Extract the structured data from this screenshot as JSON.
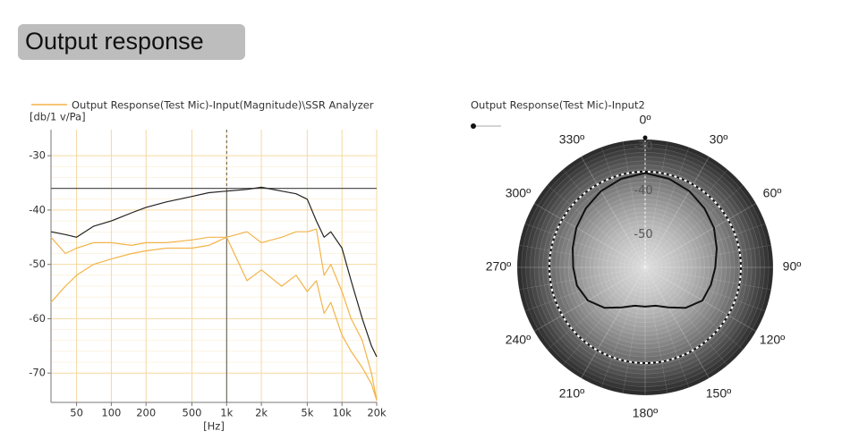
{
  "header": {
    "title": "Output response"
  },
  "chart_data": [
    {
      "type": "line",
      "ylabel": "[db/1 v/Pa]",
      "xlabel": "[Hz]",
      "x": [
        30,
        40,
        50,
        70,
        100,
        150,
        200,
        300,
        500,
        700,
        1000,
        1500,
        2000,
        3000,
        4000,
        5000,
        6000,
        7000,
        8000,
        10000,
        12000,
        15000,
        18000,
        20000
      ],
      "series": [
        {
          "color": "#222222",
          "values": [
            -44,
            -44.5,
            -45,
            -43,
            -42,
            -40.5,
            -39.5,
            -38.5,
            -37.5,
            -36.8,
            -36.5,
            -36.2,
            -35.8,
            -36.5,
            -37,
            -38,
            -42,
            -45,
            -44,
            -47,
            -53,
            -60,
            -65,
            -67
          ]
        },
        {
          "name": "Output Response(Test Mic)-Input(Magnitude)\\SSR Analyzer",
          "color": "#f2b44a",
          "values": [
            -45,
            -48,
            -47,
            -46,
            -46,
            -46.5,
            -46,
            -46,
            -45.5,
            -45,
            -45,
            -44,
            -46,
            -45,
            -44,
            -44,
            -43.5,
            -52,
            -50,
            -55,
            -60,
            -64,
            -70,
            -75
          ]
        },
        {
          "color": "#f2b44a",
          "values": [
            -57,
            -54,
            -52,
            -50,
            -49,
            -48,
            -47.5,
            -47,
            -47,
            -46.5,
            -45,
            -53,
            -51,
            -54,
            -52,
            -55,
            -53,
            -59,
            -57,
            -63,
            -66,
            -69,
            -72,
            -75
          ]
        }
      ],
      "xscale": "log",
      "xlim": [
        30,
        20000
      ],
      "xticks": [
        50,
        100,
        200,
        500,
        {
          "value": 1000,
          "label": "1k"
        },
        {
          "value": 2000,
          "label": "2k"
        },
        {
          "value": 5000,
          "label": "5k"
        },
        {
          "value": 10000,
          "label": "10k"
        },
        {
          "value": 20000,
          "label": "20k"
        }
      ],
      "ylim": [
        -75.4,
        -25.2
      ],
      "yticks": [
        -30,
        -40,
        -50,
        -60,
        -70
      ],
      "grid": true,
      "grid_color": "#f6d9a0",
      "cursor": {
        "x": 1000,
        "y": -36
      }
    },
    {
      "type": "polar",
      "title": "Output Response(Test Mic)-Input2",
      "theta": [
        0,
        15,
        30,
        45,
        60,
        75,
        90,
        105,
        120,
        135,
        150,
        165,
        180,
        195,
        210,
        225,
        240,
        255,
        270,
        285,
        300,
        315,
        330,
        345
      ],
      "series": [
        {
          "color": "#111111",
          "values": [
            -37.6,
            -38.2,
            -39,
            -40,
            -41,
            -42.2,
            -43.1,
            -43.6,
            -44,
            -46,
            -48.5,
            -50,
            -50.1,
            -50,
            -48.5,
            -46,
            -44,
            -43,
            -42.7,
            -42,
            -41,
            -40,
            -39,
            -38.2
          ]
        }
      ],
      "rlim": [
        -59,
        -30
      ],
      "rticks": [
        -30,
        -40,
        -50
      ],
      "reference_r": -37.3,
      "angle_ticks": [
        {
          "value": 0,
          "label": "0º"
        },
        {
          "value": 30,
          "label": "30º"
        },
        {
          "value": 60,
          "label": "60º"
        },
        {
          "value": 90,
          "label": "90º"
        },
        {
          "value": 120,
          "label": "120º"
        },
        {
          "value": 150,
          "label": "150º"
        },
        {
          "value": 180,
          "label": "180º"
        },
        {
          "value": 210,
          "label": "210º"
        },
        {
          "value": 240,
          "label": "240º"
        },
        {
          "value": 270,
          "label": "270º"
        },
        {
          "value": 300,
          "label": "300º"
        },
        {
          "value": 330,
          "label": "330º"
        }
      ]
    }
  ]
}
